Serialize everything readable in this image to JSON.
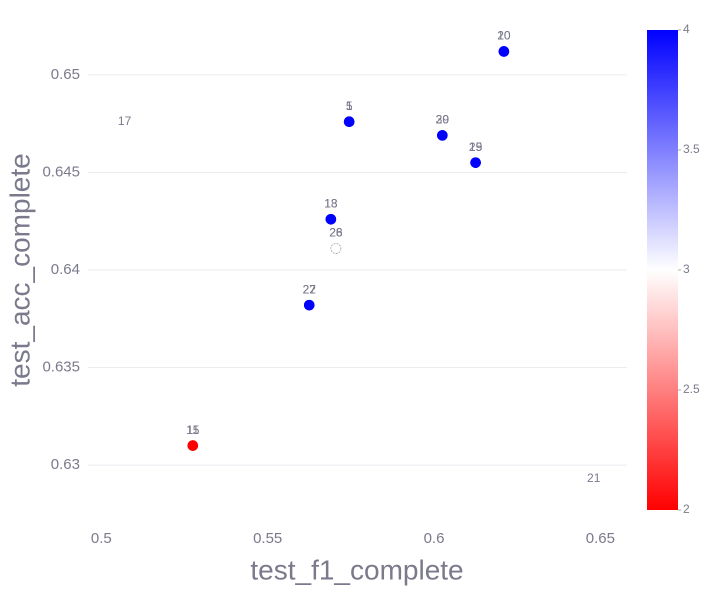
{
  "chart_data": {
    "type": "scatter",
    "x_label": "test_f1_complete",
    "y_label": "test_acc_complete",
    "x": [
      0.621,
      0.621,
      0.5745,
      0.5745,
      0.6025,
      0.6025,
      0.6125,
      0.6125,
      0.569,
      0.569,
      0.5705,
      0.5705,
      0.5625,
      0.5625,
      0.5275,
      0.5275,
      0.507,
      0.648
    ],
    "y": [
      0.6512,
      0.6512,
      0.6476,
      0.6476,
      0.6469,
      0.6469,
      0.6455,
      0.6455,
      0.6426,
      0.6426,
      0.6411,
      0.6411,
      0.6382,
      0.6382,
      0.631,
      0.631,
      0.6476,
      0.6293
    ],
    "color_values": [
      4,
      4,
      4,
      4,
      4,
      4,
      4,
      4,
      4,
      4,
      3,
      3,
      4,
      4,
      2,
      2,
      null,
      null
    ],
    "labels": [
      "10",
      "20",
      "1",
      "5",
      "29",
      "30",
      "19",
      "25",
      "13",
      "18",
      "26",
      "28",
      "22",
      "27",
      "11",
      "15",
      "17",
      "21"
    ],
    "xlim": [
      0.496,
      0.658
    ],
    "xticks": [
      0.5,
      0.55,
      0.6,
      0.65
    ],
    "ylim": [
      0.6277,
      0.6523
    ],
    "yticks": [
      0.63,
      0.635,
      0.64,
      0.645,
      0.65
    ],
    "grid": true,
    "colorscale": [
      "#ff0000",
      "#ffffff",
      "#0000ff"
    ],
    "clim": [
      2,
      4
    ],
    "colorbar_ticks": [
      2,
      2.5,
      3,
      3.5,
      4
    ]
  }
}
